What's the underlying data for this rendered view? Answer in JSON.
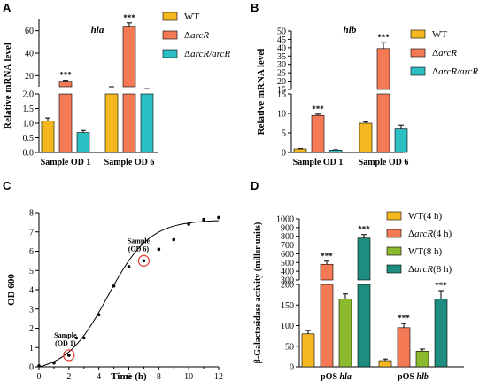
{
  "colors": {
    "wt": "#F5B820",
    "arcr": "#F47A55",
    "arcr_comp": "#2BBFC3",
    "wt8": "#8DB92F",
    "arcr8": "#1E8C7E",
    "circle": "#E8342C",
    "axis": "#000000"
  },
  "chart_data": [
    {
      "panel": "A",
      "type": "bar",
      "title": "hla",
      "ylabel": "Relative mRNA level",
      "xlabel": "",
      "categories": [
        "Sample OD 1",
        "Sample OD 6"
      ],
      "axis_break": {
        "lower": [
          0,
          2.0
        ],
        "upper": [
          10,
          70
        ]
      },
      "yticks_lower": [
        "0.0",
        "0.5",
        "1.0",
        "1.5",
        "2.0"
      ],
      "yticks_upper": [
        "20",
        "40",
        "60"
      ],
      "legend": [
        "WT",
        "ΔarcR",
        "ΔarcR/arcR"
      ],
      "series": [
        {
          "name": "WT",
          "values": [
            1.08,
            9.5
          ],
          "err": [
            0.1,
            0.5
          ]
        },
        {
          "name": "ΔarcR",
          "values": [
            15.0,
            64.0
          ],
          "err": [
            0.8,
            3.0
          ]
        },
        {
          "name": "ΔarcR/arcR",
          "values": [
            0.68,
            7.5
          ],
          "err": [
            0.07,
            0.8
          ]
        }
      ],
      "significance": [
        "***",
        "***"
      ]
    },
    {
      "panel": "B",
      "type": "bar",
      "title": "hlb",
      "ylabel": "Relative mRNA level",
      "xlabel": "",
      "categories": [
        "Sample OD 1",
        "Sample OD 6"
      ],
      "axis_break": {
        "lower": [
          0,
          15
        ],
        "upper": [
          15,
          50
        ]
      },
      "yticks_lower": [
        "0",
        "5",
        "10",
        "15"
      ],
      "yticks_upper": [
        "15",
        "20",
        "25",
        "30",
        "35",
        "40",
        "45",
        "50"
      ],
      "legend": [
        "WT",
        "ΔarcR",
        "ΔarcR/arcR"
      ],
      "series": [
        {
          "name": "WT",
          "values": [
            0.9,
            7.5
          ],
          "err": [
            0.1,
            0.4
          ]
        },
        {
          "name": "ΔarcR",
          "values": [
            9.5,
            39.5
          ],
          "err": [
            0.3,
            3.5
          ]
        },
        {
          "name": "ΔarcR/arcR",
          "values": [
            0.6,
            6.0
          ],
          "err": [
            0.1,
            1.0
          ]
        }
      ],
      "significance": [
        "***",
        "***"
      ]
    },
    {
      "panel": "C",
      "type": "line",
      "title": "",
      "xlabel": "Time (h)",
      "ylabel": "OD 600",
      "xlim": [
        0,
        12
      ],
      "ylim": [
        0,
        8
      ],
      "xticks": [
        "0",
        "2",
        "4",
        "6",
        "8",
        "10",
        "12"
      ],
      "yticks": [
        "0",
        "1",
        "2",
        "3",
        "4",
        "5",
        "6",
        "7",
        "8"
      ],
      "points": {
        "x": [
          0,
          1,
          2,
          2.5,
          3,
          4,
          5,
          6,
          7,
          8,
          9,
          10,
          11,
          12
        ],
        "y": [
          0.05,
          0.2,
          0.6,
          1.5,
          1.5,
          2.7,
          4.2,
          5.2,
          5.5,
          6.1,
          6.6,
          7.4,
          7.65,
          7.75
        ]
      },
      "annotations": [
        {
          "text": [
            "Sample",
            "(OD 1)"
          ],
          "x": 2,
          "y": 0.6
        },
        {
          "text": [
            "Sample",
            "(OD 6)"
          ],
          "x": 7,
          "y": 5.5
        }
      ]
    },
    {
      "panel": "D",
      "type": "bar",
      "title": "",
      "ylabel": "β-Galactosidase activity (miller units)",
      "xlabel": "",
      "categories": [
        "pOS hla",
        "pOS hlb"
      ],
      "category_parts": [
        [
          "pOS ",
          "hla"
        ],
        [
          "pOS ",
          "hlb"
        ]
      ],
      "axis_break": {
        "lower": [
          0,
          200
        ],
        "upper": [
          300,
          1000
        ]
      },
      "yticks_lower": [
        "0",
        "50",
        "100",
        "150",
        "200"
      ],
      "yticks_upper": [
        "300",
        "400",
        "500",
        "600",
        "700",
        "800",
        "900",
        "1000"
      ],
      "legend": [
        "WT(4 h)",
        "ΔarcR(4 h)",
        "WT(8 h)",
        "ΔarcR(8 h)"
      ],
      "series": [
        {
          "name": "WT(4 h)",
          "values": [
            80,
            15
          ],
          "err": [
            8,
            4
          ]
        },
        {
          "name": "ΔarcR(4 h)",
          "values": [
            480,
            95
          ],
          "err": [
            35,
            10
          ]
        },
        {
          "name": "WT(8 h)",
          "values": [
            165,
            38
          ],
          "err": [
            12,
            5
          ]
        },
        {
          "name": "ΔarcR(8 h)",
          "values": [
            780,
            165
          ],
          "err": [
            40,
            20
          ]
        }
      ],
      "significance": [
        [
          "",
          "***",
          "",
          "***"
        ],
        [
          "",
          "***",
          "",
          "***"
        ]
      ]
    }
  ],
  "panels": {
    "A": "A",
    "B": "B",
    "C": "C",
    "D": "D"
  }
}
